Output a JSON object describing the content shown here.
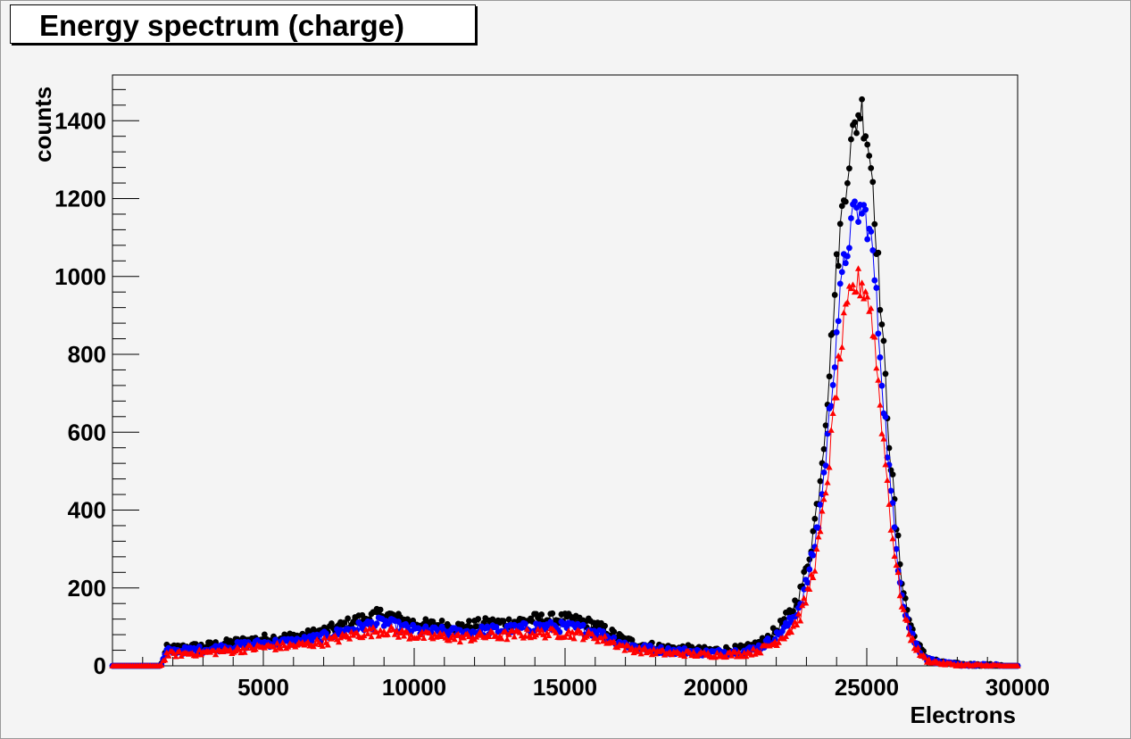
{
  "chart_data": {
    "type": "scatter",
    "title": "Energy spectrum (charge)",
    "xlabel": "Electrons",
    "ylabel": "counts",
    "xlim": [
      0,
      30000
    ],
    "ylim": [
      0,
      1520
    ],
    "x_ticks": [
      5000,
      10000,
      15000,
      20000,
      25000,
      30000
    ],
    "y_ticks": [
      0,
      200,
      400,
      600,
      800,
      1000,
      1200,
      1400
    ],
    "grid": false,
    "legend": "none",
    "series": [
      {
        "color": "#000000",
        "marker": "circle",
        "x": [
          0,
          1000,
          1600,
          1800,
          2000,
          2500,
          3000,
          3500,
          4000,
          4500,
          5000,
          5500,
          6000,
          6500,
          7000,
          7500,
          8000,
          8500,
          9000,
          9500,
          10000,
          10500,
          11000,
          11500,
          12000,
          12500,
          13000,
          13500,
          14000,
          14500,
          15000,
          15500,
          16000,
          16500,
          17000,
          17500,
          18000,
          18500,
          19000,
          19500,
          20000,
          20500,
          21000,
          21500,
          22000,
          22500,
          22800,
          23000,
          23200,
          23400,
          23600,
          23800,
          24000,
          24200,
          24400,
          24600,
          24800,
          25000,
          25200,
          25400,
          25600,
          25800,
          26000,
          26200,
          26400,
          26600,
          26800,
          27000,
          27500,
          28000,
          28500,
          29000,
          29500,
          30000
        ],
        "y": [
          0,
          0,
          0,
          45,
          45,
          48,
          50,
          55,
          60,
          65,
          70,
          72,
          75,
          80,
          90,
          100,
          115,
          125,
          135,
          120,
          110,
          105,
          105,
          100,
          105,
          110,
          110,
          115,
          120,
          120,
          120,
          115,
          105,
          85,
          65,
          55,
          50,
          45,
          45,
          40,
          40,
          42,
          45,
          60,
          90,
          140,
          190,
          250,
          330,
          440,
          600,
          800,
          1020,
          1180,
          1300,
          1380,
          1440,
          1370,
          1250,
          1000,
          750,
          520,
          340,
          200,
          120,
          70,
          40,
          20,
          8,
          4,
          2,
          1,
          0,
          0
        ]
      },
      {
        "color": "#0000ff",
        "marker": "circle",
        "x": [
          0,
          1000,
          1600,
          1800,
          2000,
          2500,
          3000,
          3500,
          4000,
          4500,
          5000,
          5500,
          6000,
          6500,
          7000,
          7500,
          8000,
          8500,
          9000,
          9500,
          10000,
          10500,
          11000,
          11500,
          12000,
          12500,
          13000,
          13500,
          14000,
          14500,
          15000,
          15500,
          16000,
          16500,
          17000,
          17500,
          18000,
          18500,
          19000,
          19500,
          20000,
          20500,
          21000,
          21500,
          22000,
          22500,
          22800,
          23000,
          23200,
          23400,
          23600,
          23800,
          24000,
          24200,
          24400,
          24600,
          24800,
          25000,
          25200,
          25400,
          25600,
          25800,
          26000,
          26200,
          26400,
          26600,
          26800,
          27000,
          27500,
          28000,
          28500,
          29000,
          29500,
          30000
        ],
        "y": [
          0,
          0,
          0,
          38,
          38,
          40,
          42,
          46,
          50,
          55,
          58,
          60,
          62,
          67,
          75,
          85,
          97,
          105,
          112,
          100,
          92,
          88,
          88,
          85,
          88,
          92,
          92,
          96,
          100,
          100,
          100,
          96,
          88,
          72,
          55,
          47,
          42,
          38,
          38,
          34,
          34,
          36,
          38,
          50,
          75,
          115,
          160,
          210,
          280,
          370,
          500,
          670,
          860,
          1000,
          1100,
          1160,
          1170,
          1150,
          1060,
          850,
          640,
          440,
          290,
          170,
          100,
          60,
          34,
          17,
          7,
          3,
          2,
          1,
          0,
          0
        ]
      },
      {
        "color": "#ff0000",
        "marker": "triangle",
        "x": [
          0,
          1000,
          1600,
          1800,
          2000,
          2500,
          3000,
          3500,
          4000,
          4500,
          5000,
          5500,
          6000,
          6500,
          7000,
          7500,
          8000,
          8500,
          9000,
          9500,
          10000,
          10500,
          11000,
          11500,
          12000,
          12500,
          13000,
          13500,
          14000,
          14500,
          15000,
          15500,
          16000,
          16500,
          17000,
          17500,
          18000,
          18500,
          19000,
          19500,
          20000,
          20500,
          21000,
          21500,
          22000,
          22500,
          22800,
          23000,
          23200,
          23400,
          23600,
          23800,
          24000,
          24200,
          24400,
          24600,
          24800,
          25000,
          25200,
          25400,
          25600,
          25800,
          26000,
          26200,
          26400,
          26600,
          26800,
          27000,
          27500,
          28000,
          28500,
          29000,
          29500,
          30000
        ],
        "y": [
          0,
          0,
          0,
          30,
          30,
          32,
          34,
          37,
          40,
          45,
          48,
          50,
          52,
          56,
          62,
          70,
          80,
          86,
          92,
          84,
          78,
          75,
          75,
          72,
          75,
          78,
          78,
          81,
          84,
          84,
          84,
          81,
          75,
          62,
          47,
          40,
          35,
          32,
          32,
          29,
          29,
          30,
          32,
          42,
          62,
          95,
          130,
          175,
          235,
          310,
          420,
          560,
          720,
          850,
          930,
          975,
          985,
          960,
          880,
          710,
          540,
          370,
          240,
          145,
          85,
          50,
          28,
          14,
          6,
          3,
          1,
          1,
          0,
          0
        ]
      }
    ]
  }
}
